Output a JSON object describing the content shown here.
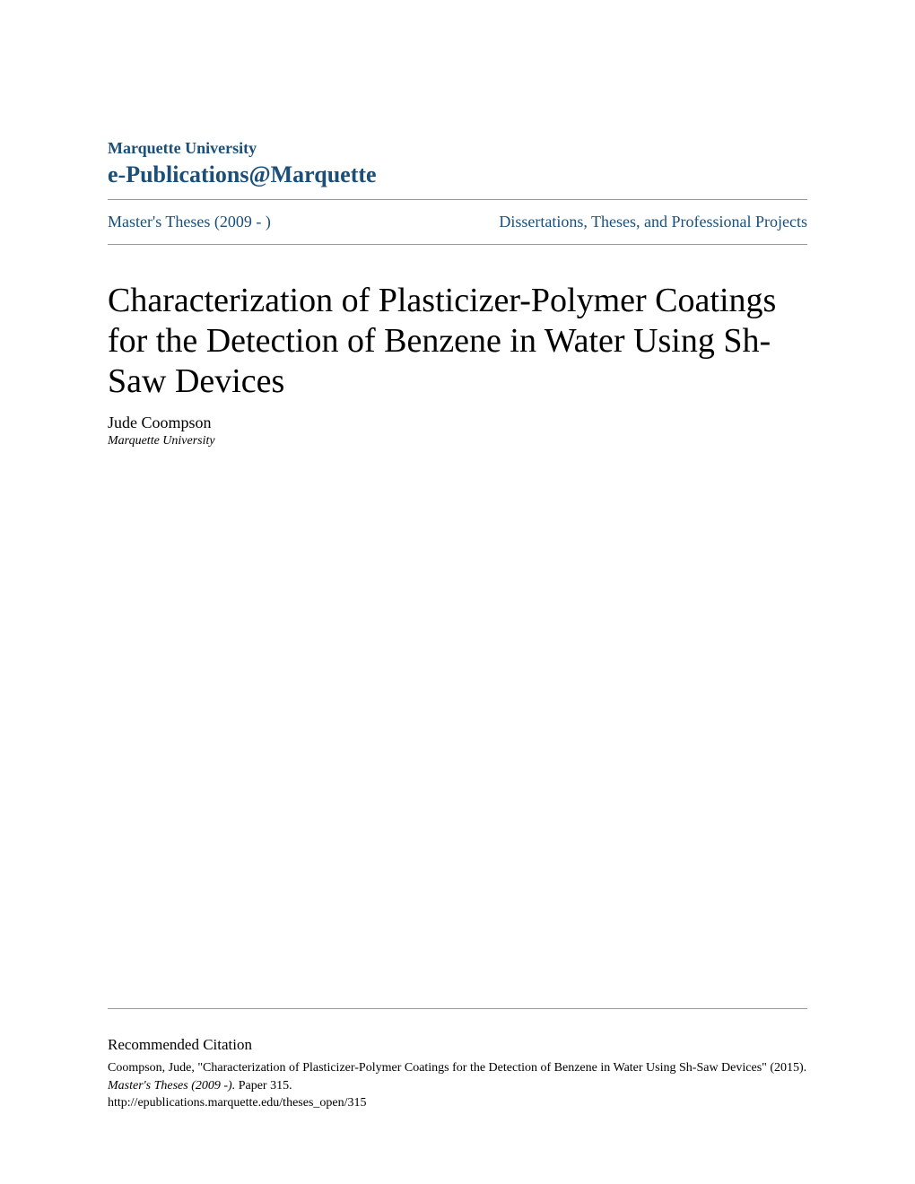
{
  "header": {
    "institution": "Marquette University",
    "publication": "e-Publications@Marquette"
  },
  "nav": {
    "left": "Master's Theses (2009 - )",
    "right": "Dissertations, Theses, and Professional Projects"
  },
  "paper": {
    "title": "Characterization of Plasticizer-Polymer Coatings for the Detection of Benzene in Water Using Sh-Saw Devices",
    "author": "Jude Coompson",
    "affiliation": "Marquette University"
  },
  "citation": {
    "heading": "Recommended Citation",
    "author_year": "Coompson, Jude, \"Characterization of Plasticizer-Polymer Coatings for the Detection of Benzene in Water Using Sh-Saw Devices\" (2015). ",
    "source": "Master's Theses (2009 -).",
    "paper_num": " Paper 315.",
    "url": "http://epublications.marquette.edu/theses_open/315"
  },
  "colors": {
    "link_color": "#1a4f7a",
    "text_color": "#000000",
    "divider_color": "#999999",
    "background": "#ffffff"
  },
  "typography": {
    "title_fontsize": 38,
    "header_institution_fontsize": 18,
    "header_publication_fontsize": 26,
    "nav_fontsize": 18,
    "author_fontsize": 18,
    "affiliation_fontsize": 14,
    "citation_heading_fontsize": 17,
    "citation_text_fontsize": 14
  }
}
